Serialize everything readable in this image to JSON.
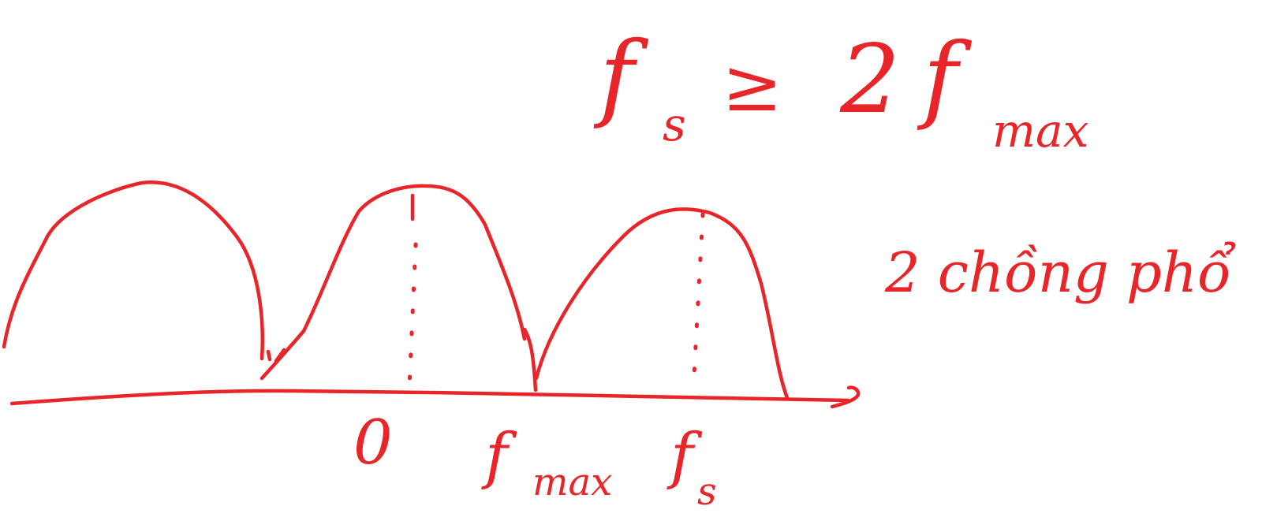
{
  "formula": {
    "fs": "f",
    "fs_sub": "s",
    "relation": "≥",
    "coefficient": "2",
    "fmax": "f",
    "fmax_sub": "max"
  },
  "note": "2 chồng phổ",
  "axis_labels": {
    "zero": "0",
    "fmax": "f",
    "fmax_sub": "max",
    "fs": "f",
    "fs_sub": "s"
  },
  "colors": {
    "ink": "#e8262a",
    "background": "#ffffff"
  }
}
